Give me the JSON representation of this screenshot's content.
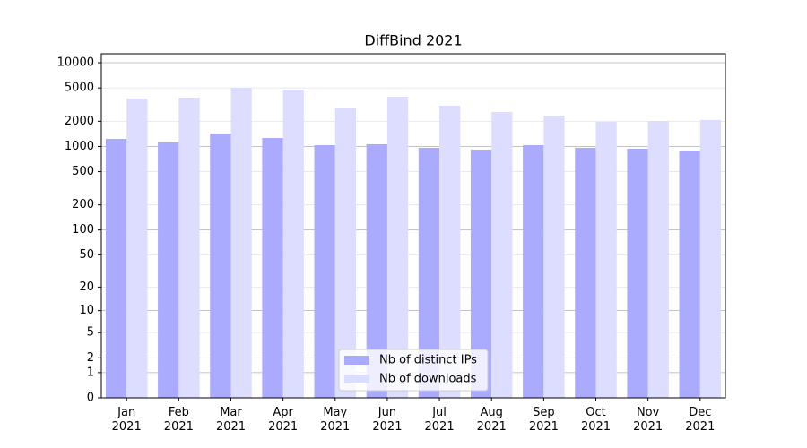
{
  "chart_data": {
    "type": "bar",
    "title": "DiffBind 2021",
    "categories": [
      "Jan\n2021",
      "Feb\n2021",
      "Mar\n2021",
      "Apr\n2021",
      "May\n2021",
      "Jun\n2021",
      "Jul\n2021",
      "Aug\n2021",
      "Sep\n2021",
      "Oct\n2021",
      "Nov\n2021",
      "Dec\n2021"
    ],
    "series": [
      {
        "name": "Nb of distinct IPs",
        "color": "#aaaaff",
        "values": [
          1233,
          1117,
          1430,
          1264,
          1037,
          1064,
          964,
          918,
          1037,
          964,
          940,
          895
        ]
      },
      {
        "name": "Nb of downloads",
        "color": "#ddddff",
        "values": [
          3735,
          3830,
          5015,
          4775,
          2920,
          3925,
          3070,
          2580,
          2340,
          1970,
          2020,
          2070
        ]
      }
    ],
    "yscale": "log1p",
    "ylim": [
      0,
      12800
    ],
    "yticks": [
      0,
      1,
      2,
      5,
      10,
      20,
      50,
      100,
      200,
      500,
      1000,
      2000,
      5000,
      10000
    ],
    "grid": true,
    "legend": "lower center"
  }
}
